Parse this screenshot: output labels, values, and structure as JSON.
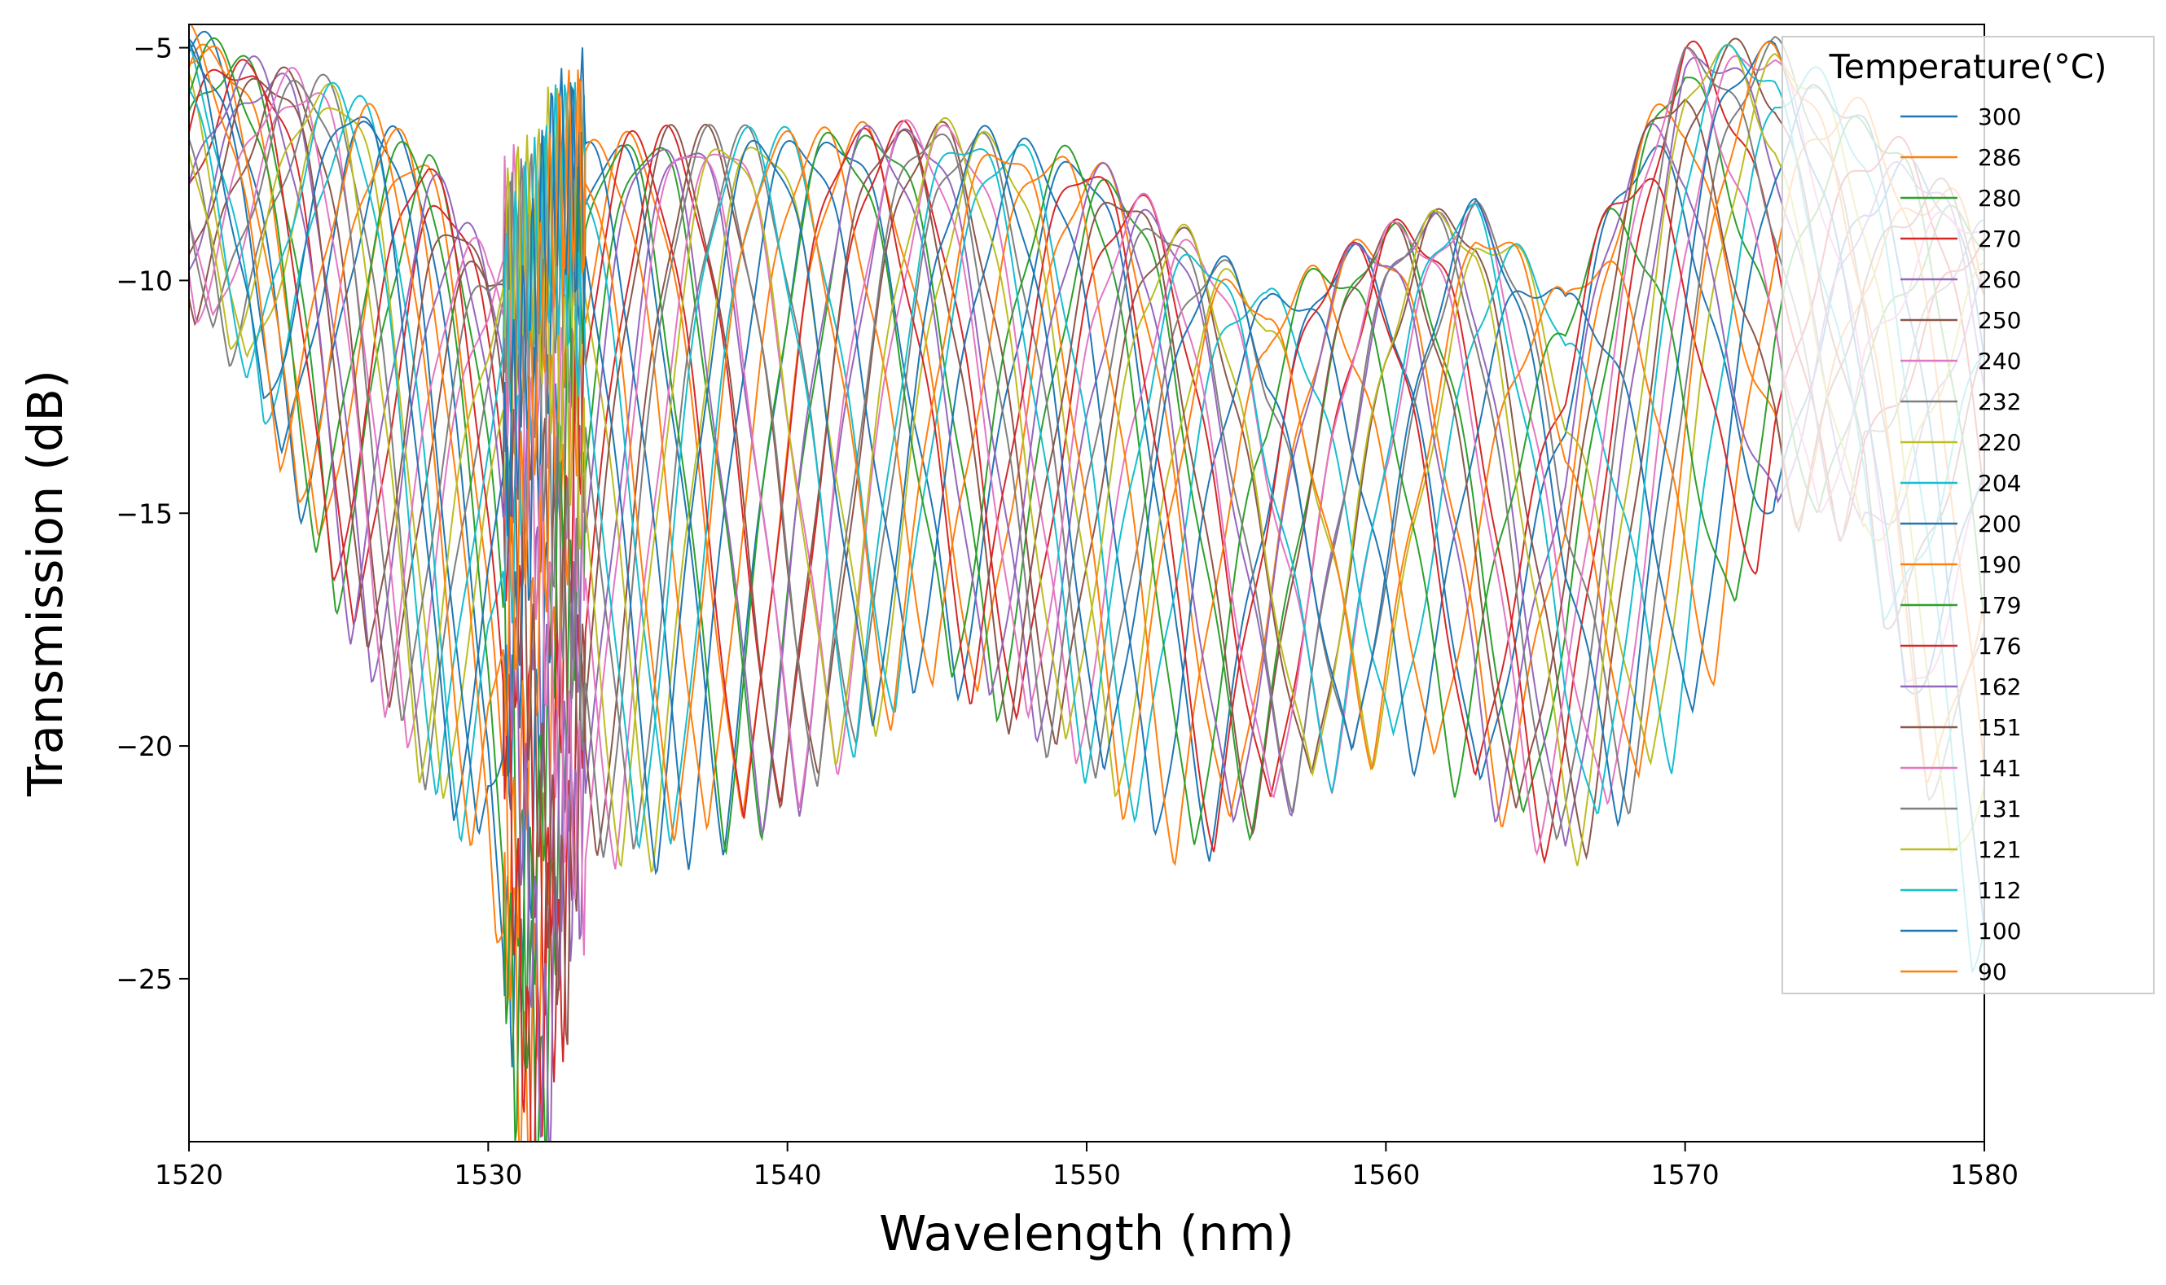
{
  "chart_data": {
    "type": "line",
    "title": "",
    "xlabel": "Wavelength (nm)",
    "ylabel": "Transmission (dB)",
    "xlim": [
      1520,
      1580
    ],
    "ylim": [
      -28.5,
      -4.5
    ],
    "xticks": [
      1520,
      1530,
      1540,
      1550,
      1560,
      1570,
      1580
    ],
    "yticks": [
      -5,
      -10,
      -15,
      -20,
      -25
    ],
    "xtick_labels": [
      "1520",
      "1530",
      "1540",
      "1550",
      "1560",
      "1570",
      "1580"
    ],
    "ytick_labels": [
      "−5",
      "−10",
      "−15",
      "−20",
      "−25"
    ],
    "grid": false,
    "legend": {
      "title": "Temperature(°C)",
      "placement": "top-right",
      "entries": [
        "300",
        "286",
        "280",
        "270",
        "260",
        "250",
        "240",
        "232",
        "220",
        "204",
        "200",
        "190",
        "179",
        "176",
        "162",
        "151",
        "141",
        "131",
        "121",
        "112",
        "100",
        "90"
      ]
    },
    "color_cycle": [
      "#1f77b4",
      "#ff7f0e",
      "#2ca02c",
      "#d62728",
      "#9467bd",
      "#8c564b",
      "#e377c2",
      "#7f7f7f",
      "#bcbd22",
      "#17becf"
    ],
    "series_shape": {
      "description_points_wavelength_nm": [
        1520,
        1522,
        1525,
        1528,
        1530,
        1531,
        1531.8,
        1533,
        1536,
        1540,
        1545,
        1550,
        1553,
        1556,
        1560,
        1563,
        1566,
        1570,
        1573,
        1576,
        1580
      ],
      "upper_envelope_dB": [
        -4.8,
        -5.5,
        -6.0,
        -7.5,
        -9.8,
        -9.5,
        -8.5,
        -7.2,
        -7.0,
        -7.0,
        -6.8,
        -7.5,
        -9.0,
        -10.5,
        -9.0,
        -8.5,
        -10.5,
        -5.2,
        -5.1,
        -6.5,
        -9.0
      ],
      "lower_envelope_dB": [
        -10.5,
        -12.0,
        -17.0,
        -21.0,
        -22.5,
        -27.5,
        -28.5,
        -22.5,
        -22.5,
        -21.5,
        -18.5,
        -20.5,
        -22.5,
        -21.5,
        -20.0,
        -21.0,
        -22.5,
        -20.0,
        -15.0,
        -15.5,
        -25.5
      ]
    }
  }
}
